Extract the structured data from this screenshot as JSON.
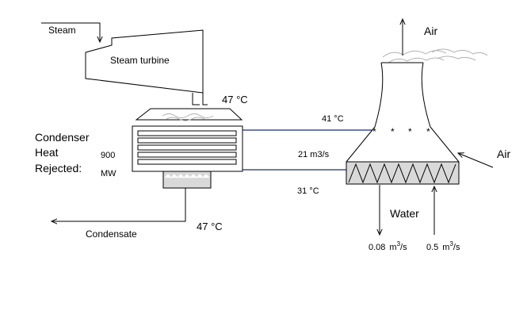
{
  "labels": {
    "steam": "Steam",
    "steam_turbine": "Steam turbine",
    "turbine_exhaust_temp": "47 °C",
    "condenser": "Condenser",
    "heat": "Heat",
    "rejected": "Rejected:",
    "heat_value": "900",
    "heat_unit": "MW",
    "condensate": "Condensate",
    "condensate_temp": "47 °C",
    "hot_water_temp": "41 °C",
    "flow_rate": "21 m3/s",
    "cold_water_temp": "31 °C",
    "air_out": "Air",
    "air_in": "Air",
    "water": "Water",
    "blowdown_value": "0.08",
    "makeup_value": "0.5",
    "flow_unit_base": "m",
    "flow_unit_exp": "3",
    "flow_unit_tail": "/s"
  },
  "colors": {
    "line": "#000000",
    "pipe": "#1f2a7a",
    "fill_media": "#d9d9d9",
    "steam_wisps": "#b0b0b0"
  }
}
